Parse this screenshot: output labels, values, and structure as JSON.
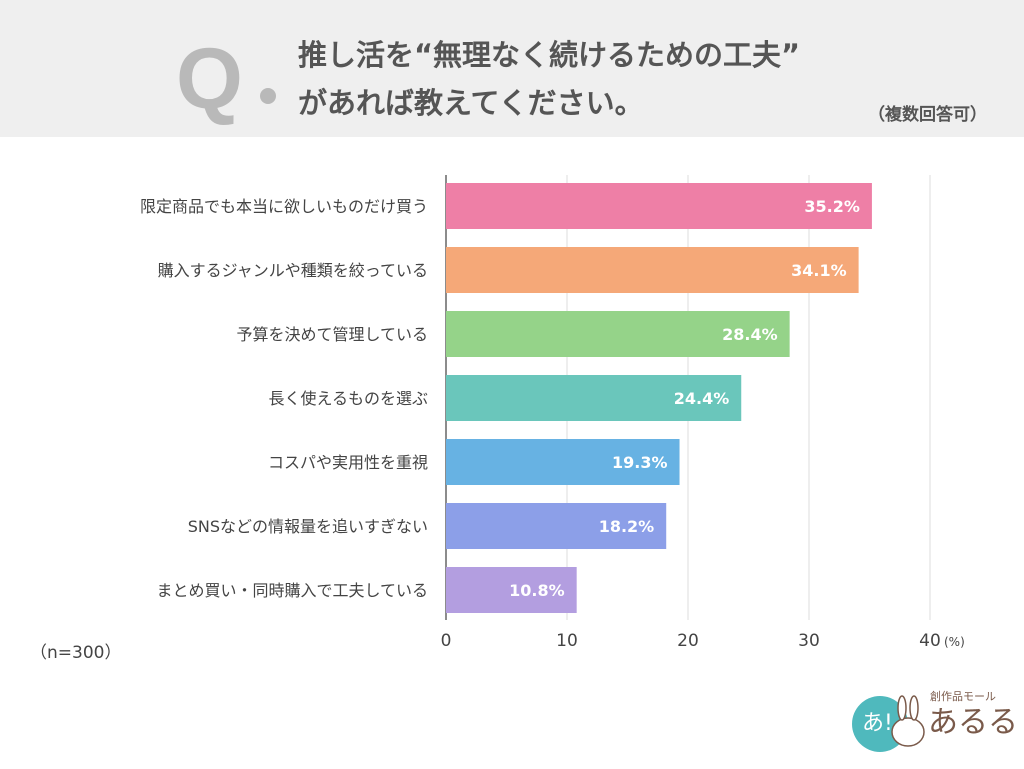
{
  "header": {
    "q_letter": "Q",
    "title_line1": "推し活を“無理なく続けるための工夫”",
    "title_line2": "があれば教えてください。",
    "note": "（複数回答可）"
  },
  "sample_note": "（n=300）",
  "logo": {
    "text": "創作品モール あるる"
  },
  "chart_data": {
    "type": "bar",
    "orientation": "horizontal",
    "categories": [
      "限定商品でも本当に欲しいものだけ買う",
      "購入するジャンルや種類を絞っている",
      "予算を決めて管理している",
      "長く使えるものを選ぶ",
      "コスパや実用性を重視",
      "SNSなどの情報量を追いすぎない",
      "まとめ買い・同時購入で工夫している"
    ],
    "values": [
      35.2,
      34.1,
      28.4,
      24.4,
      19.3,
      18.2,
      10.8
    ],
    "labels": [
      "35.2%",
      "34.1%",
      "28.4%",
      "24.4%",
      "19.3%",
      "18.2%",
      "10.8%"
    ],
    "colors": [
      "#ee7fa6",
      "#f5a878",
      "#95d389",
      "#6ac6bb",
      "#67b2e3",
      "#8c9fe8",
      "#b39ee0"
    ],
    "xlim": [
      0,
      40
    ],
    "ticks": [
      "0",
      "10",
      "20",
      "30",
      "40"
    ],
    "unit": "(%)",
    "grid": true
  }
}
